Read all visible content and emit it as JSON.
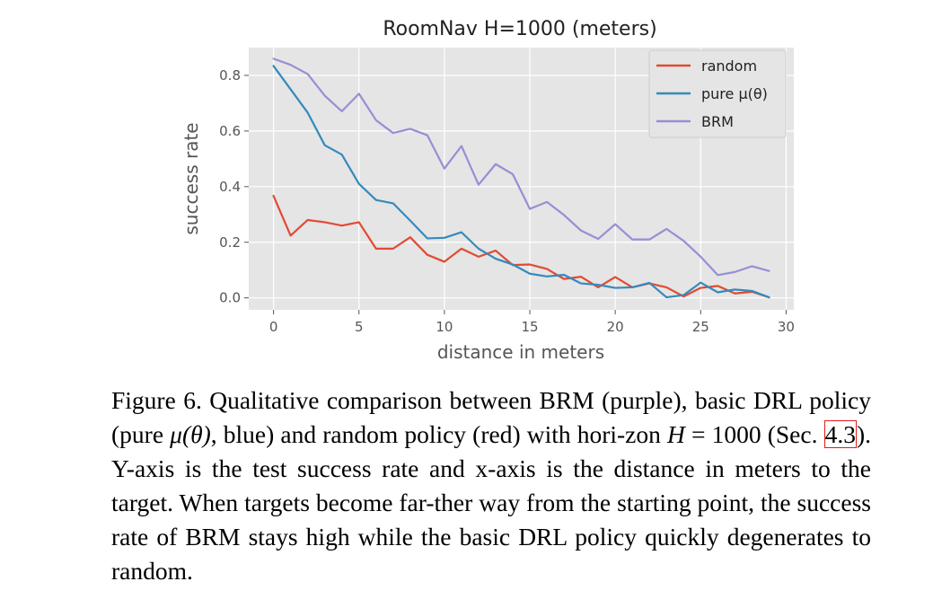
{
  "chart_data": {
    "type": "line",
    "title": "RoomNav H=1000 (meters)",
    "xlabel": "distance in meters",
    "ylabel": "success rate",
    "xlim": [
      -1.45,
      30.45
    ],
    "ylim": [
      -0.043,
      0.9
    ],
    "xticks": [
      0,
      5,
      10,
      15,
      20,
      25,
      30
    ],
    "yticks": [
      0.0,
      0.2,
      0.4,
      0.6,
      0.8
    ],
    "xtick_labels": [
      "0",
      "5",
      "10",
      "15",
      "20",
      "25",
      "30"
    ],
    "ytick_labels": [
      "0.0",
      "0.2",
      "0.4",
      "0.6",
      "0.8"
    ],
    "grid": true,
    "legend_position": "top-right",
    "x": [
      0,
      1,
      2,
      3,
      4,
      5,
      6,
      7,
      8,
      9,
      10,
      11,
      12,
      13,
      14,
      15,
      16,
      17,
      18,
      19,
      20,
      21,
      22,
      23,
      24,
      25,
      26,
      27,
      28,
      29
    ],
    "series": [
      {
        "name": "random",
        "color": "#e24a33",
        "values": [
          0.367,
          0.224,
          0.28,
          0.272,
          0.26,
          0.272,
          0.177,
          0.177,
          0.218,
          0.155,
          0.13,
          0.177,
          0.148,
          0.17,
          0.118,
          0.12,
          0.104,
          0.068,
          0.076,
          0.038,
          0.075,
          0.038,
          0.052,
          0.038,
          0.005,
          0.036,
          0.043,
          0.016,
          0.022,
          0.002
        ]
      },
      {
        "name": "pure μ(θ)",
        "color": "#348abd",
        "values": [
          0.834,
          0.75,
          0.666,
          0.549,
          0.515,
          0.41,
          0.352,
          0.34,
          0.278,
          0.214,
          0.216,
          0.236,
          0.177,
          0.141,
          0.12,
          0.087,
          0.077,
          0.083,
          0.052,
          0.047,
          0.036,
          0.038,
          0.054,
          0.002,
          0.01,
          0.055,
          0.02,
          0.03,
          0.025,
          0.002
        ]
      },
      {
        "name": "BRM",
        "color": "#988ed5",
        "values": [
          0.86,
          0.838,
          0.805,
          0.727,
          0.671,
          0.734,
          0.639,
          0.593,
          0.608,
          0.585,
          0.465,
          0.546,
          0.407,
          0.481,
          0.445,
          0.32,
          0.345,
          0.298,
          0.242,
          0.212,
          0.265,
          0.21,
          0.21,
          0.248,
          0.205,
          0.148,
          0.082,
          0.093,
          0.114,
          0.097
        ]
      }
    ]
  },
  "caption": {
    "p1": "Figure 6. Qualitative comparison between BRM (purple), basic DRL policy (pure ",
    "mu_theta": "μ(θ)",
    "p2": ", blue) and random policy (red) with hori-­zon ",
    "H_eq": "H",
    "p3": " = 1000 (Sec. ",
    "ref": "4.3",
    "p4": "). Y-axis is the test success rate and x-axis is the distance in meters to the target. When targets become far-­ther way from the starting point, the success rate of BRM stays high while the basic DRL policy quickly degenerates to random."
  },
  "colors": {
    "plot_bg": "#e5e5e5",
    "grid": "#ffffff",
    "reference_box": "#e31a1c"
  }
}
